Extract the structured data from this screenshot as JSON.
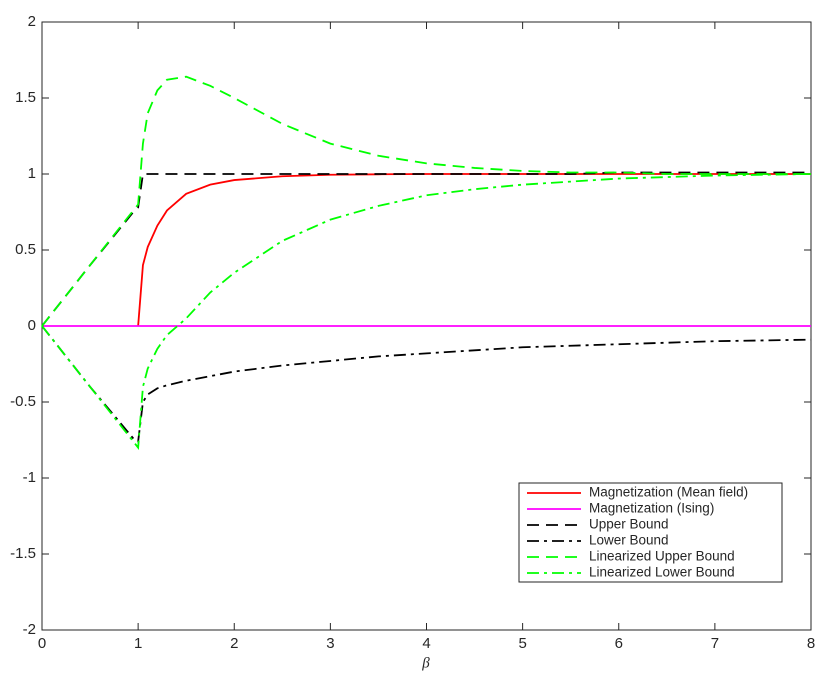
{
  "chart_data": {
    "type": "line",
    "xlabel": "β",
    "x": [
      0,
      0.5,
      0.95,
      1,
      1.05,
      1.1,
      1.2,
      1.3,
      1.5,
      1.75,
      2,
      2.5,
      3,
      3.5,
      4,
      4.5,
      5,
      5.5,
      6,
      6.5,
      7,
      7.5,
      8
    ],
    "series": [
      {
        "name": "Magnetization (Mean field)",
        "color": "#ff0000",
        "linestyle": "solid",
        "values": [
          null,
          null,
          null,
          0,
          0.4,
          0.52,
          0.66,
          0.76,
          0.87,
          0.93,
          0.96,
          0.985,
          0.995,
          0.998,
          1,
          1,
          1,
          1,
          1,
          1,
          1,
          1,
          1
        ]
      },
      {
        "name": "Magnetization (Ising)",
        "color": "#ff00ff",
        "linestyle": "solid",
        "values": [
          0,
          0,
          0,
          0,
          0,
          0,
          0,
          0,
          0,
          0,
          0,
          0,
          0,
          0,
          0,
          0,
          0,
          0,
          0,
          0,
          0,
          0,
          0
        ]
      },
      {
        "name": "Upper Bound",
        "color": "#000000",
        "linestyle": "dashed",
        "values": [
          0,
          0.4,
          0.75,
          0.78,
          1,
          1,
          1,
          1,
          1,
          1,
          1,
          1,
          1,
          1,
          1,
          1,
          1,
          1,
          1.01,
          1.01,
          1.01,
          1.01,
          1.01
        ]
      },
      {
        "name": "Lower Bound",
        "color": "#000000",
        "linestyle": "dashdot",
        "values": [
          0,
          -0.4,
          -0.74,
          -0.76,
          -0.5,
          -0.45,
          -0.41,
          -0.39,
          -0.36,
          -0.33,
          -0.3,
          -0.26,
          -0.23,
          -0.2,
          -0.18,
          -0.16,
          -0.14,
          -0.13,
          -0.12,
          -0.11,
          -0.1,
          -0.095,
          -0.09
        ]
      },
      {
        "name": "Linearized Upper Bound",
        "color": "#00ff00",
        "linestyle": "dashed",
        "values": [
          0,
          0.4,
          0.76,
          0.8,
          1.2,
          1.4,
          1.55,
          1.62,
          1.64,
          1.58,
          1.5,
          1.33,
          1.2,
          1.12,
          1.07,
          1.04,
          1.02,
          1.01,
          1.01,
          1,
          1,
          1,
          1
        ]
      },
      {
        "name": "Linearized Lower Bound",
        "color": "#00ff00",
        "linestyle": "dashdot",
        "values": [
          0,
          -0.4,
          -0.76,
          -0.8,
          -0.4,
          -0.28,
          -0.15,
          -0.06,
          0.05,
          0.22,
          0.35,
          0.56,
          0.7,
          0.79,
          0.86,
          0.9,
          0.93,
          0.95,
          0.97,
          0.98,
          0.99,
          0.995,
          1
        ]
      }
    ],
    "xlim": [
      0,
      8
    ],
    "xticks": [
      0,
      1,
      2,
      3,
      4,
      5,
      6,
      7,
      8
    ],
    "ylim": [
      -2,
      2
    ],
    "yticks": [
      -2,
      -1.5,
      -1,
      -0.5,
      0,
      0.5,
      1,
      1.5,
      2
    ],
    "grid": false,
    "legend": "lower right"
  }
}
